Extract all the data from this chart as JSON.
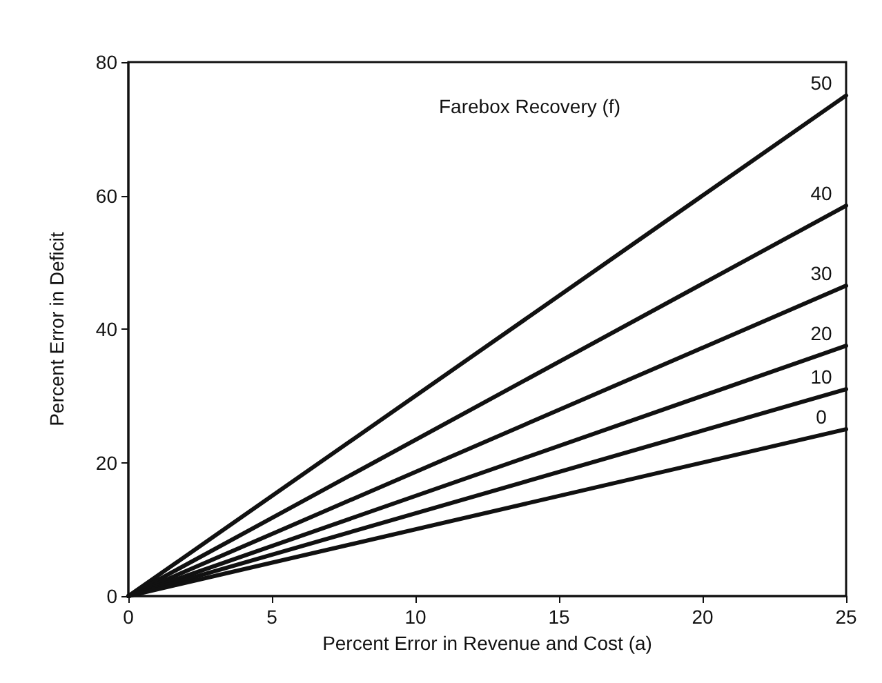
{
  "chart_data": {
    "type": "line",
    "xlabel": "Percent Error in Revenue and Cost (a)",
    "ylabel": "Percent Error in Deficit",
    "legend_title": "Farebox Recovery (f)",
    "x": [
      0,
      25
    ],
    "xlim": [
      0,
      25
    ],
    "ylim": [
      0,
      80
    ],
    "xticks": [
      0,
      5,
      10,
      15,
      20,
      25
    ],
    "yticks": [
      0,
      20,
      40,
      60,
      80
    ],
    "grid": false,
    "legend": false,
    "marker": "none",
    "line_style": "solid",
    "series": [
      {
        "name": "50",
        "color": "#111111",
        "values": [
          0,
          75
        ]
      },
      {
        "name": "40",
        "color": "#111111",
        "values": [
          0,
          58.5
        ]
      },
      {
        "name": "30",
        "color": "#111111",
        "values": [
          0,
          46.5
        ]
      },
      {
        "name": "20",
        "color": "#111111",
        "values": [
          0,
          37.5
        ]
      },
      {
        "name": "10",
        "color": "#111111",
        "values": [
          0,
          31
        ]
      },
      {
        "name": "0",
        "color": "#111111",
        "values": [
          0,
          25
        ]
      }
    ]
  }
}
